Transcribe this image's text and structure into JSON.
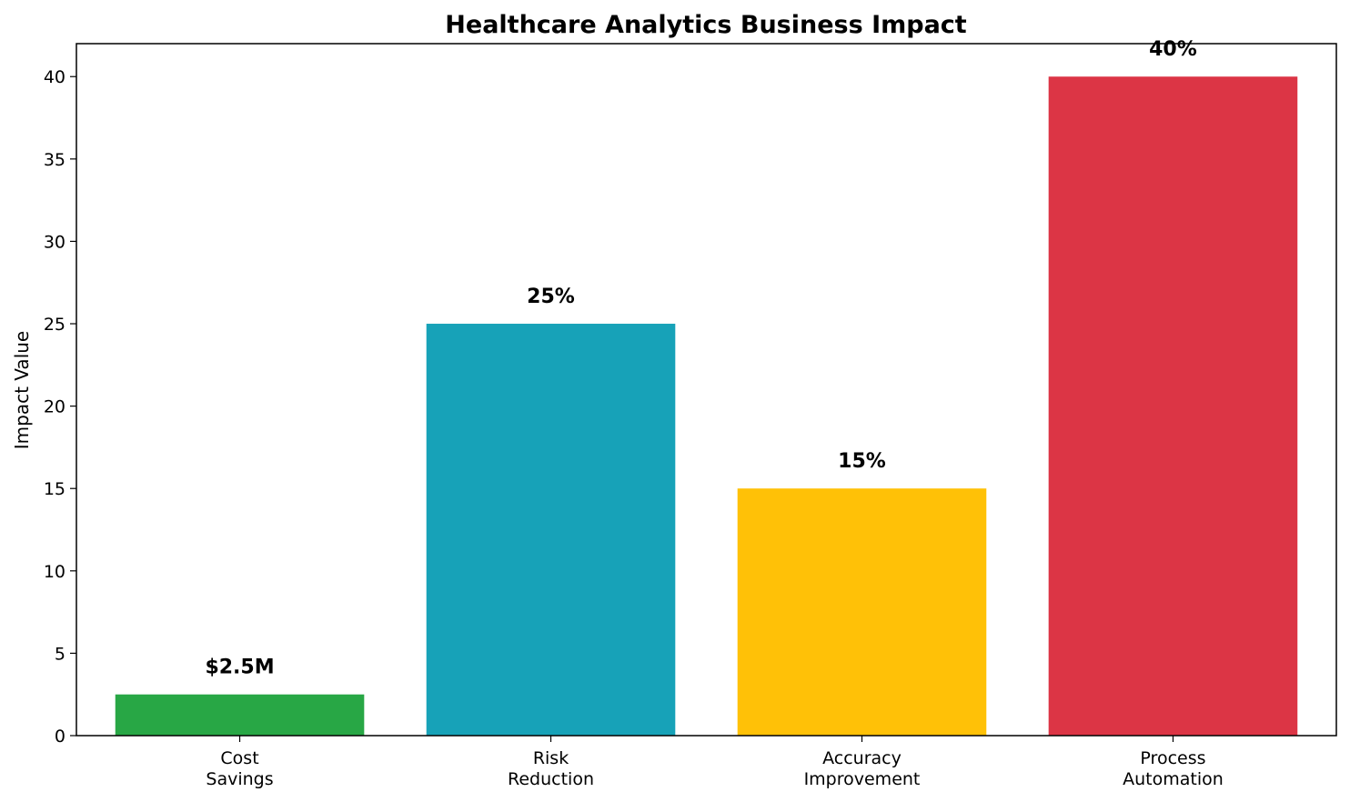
{
  "chart_data": {
    "type": "bar",
    "title": "Healthcare Analytics Business Impact",
    "xlabel": "",
    "ylabel": "Impact Value",
    "ylim": [
      0,
      42
    ],
    "yticks": [
      0,
      5,
      10,
      15,
      20,
      25,
      30,
      35,
      40
    ],
    "grid": false,
    "categories": [
      [
        "Cost",
        "Savings"
      ],
      [
        "Risk",
        "Reduction"
      ],
      [
        "Accuracy",
        "Improvement"
      ],
      [
        "Process",
        "Automation"
      ]
    ],
    "values": [
      2.5,
      25,
      15,
      40
    ],
    "value_labels": [
      "$2.5M",
      "25%",
      "15%",
      "40%"
    ],
    "colors": [
      "#28a745",
      "#17a2b8",
      "#ffc107",
      "#dc3545"
    ]
  }
}
